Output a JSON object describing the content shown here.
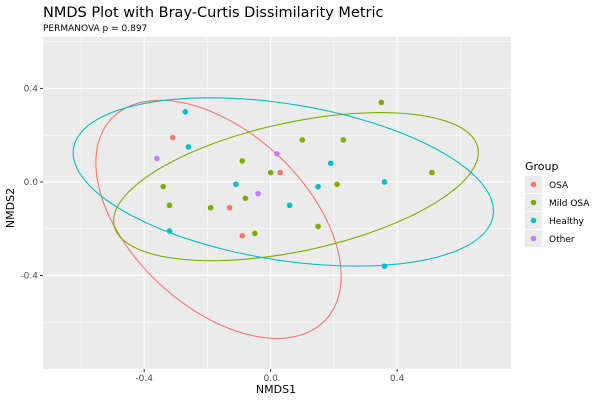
{
  "chart_data": {
    "type": "scatter",
    "title": "NMDS Plot with Bray-Curtis Dissimilarity Metric",
    "subtitle": "PERMANOVA p = 0.897",
    "xlabel": "NMDS1",
    "ylabel": "NMDS2",
    "xlim": [
      -0.72,
      0.76
    ],
    "ylim": [
      -0.8,
      0.62
    ],
    "xticks": [
      -0.4,
      0.0,
      0.4
    ],
    "yticks": [
      -0.4,
      0.0,
      0.4
    ],
    "xtick_labels": [
      "-0.4",
      "0.0",
      "0.4"
    ],
    "ytick_labels": [
      "-0.4",
      "0.0",
      "0.4"
    ],
    "grid": true,
    "legend": {
      "title": "Group",
      "position": "right"
    },
    "series": [
      {
        "name": "OSA",
        "color": "#F8766D",
        "points": [
          [
            -0.31,
            0.19
          ],
          [
            -0.13,
            -0.11
          ],
          [
            -0.09,
            -0.23
          ],
          [
            0.03,
            0.04
          ]
        ],
        "ellipse": {
          "cx": -0.165,
          "cy": -0.16,
          "rx": 0.56,
          "ry": 0.31,
          "angle_deg": -60
        }
      },
      {
        "name": "Mild OSA",
        "color": "#7CAE00",
        "points": [
          [
            -0.34,
            -0.02
          ],
          [
            -0.32,
            -0.1
          ],
          [
            -0.19,
            -0.11
          ],
          [
            -0.09,
            0.09
          ],
          [
            -0.08,
            -0.07
          ],
          [
            -0.05,
            -0.22
          ],
          [
            0.0,
            0.04
          ],
          [
            0.1,
            0.18
          ],
          [
            0.15,
            -0.19
          ],
          [
            0.21,
            -0.01
          ],
          [
            0.23,
            0.18
          ],
          [
            0.35,
            0.34
          ],
          [
            0.51,
            0.04
          ]
        ],
        "ellipse": {
          "cx": 0.08,
          "cy": -0.02,
          "rx": 0.6,
          "ry": 0.27,
          "angle_deg": 18
        }
      },
      {
        "name": "Healthy",
        "color": "#00BFC4",
        "points": [
          [
            -0.32,
            -0.21
          ],
          [
            -0.27,
            0.3
          ],
          [
            -0.26,
            0.15
          ],
          [
            -0.11,
            -0.01
          ],
          [
            0.06,
            -0.1
          ],
          [
            0.15,
            -0.02
          ],
          [
            0.19,
            0.08
          ],
          [
            0.36,
            0.0
          ],
          [
            0.36,
            -0.36
          ]
        ],
        "ellipse": {
          "cx": 0.04,
          "cy": 0.0,
          "rx": 0.68,
          "ry": 0.33,
          "angle_deg": -14
        }
      },
      {
        "name": "Other",
        "color": "#C77CFF",
        "points": [
          [
            -0.36,
            0.1
          ],
          [
            -0.04,
            -0.05
          ],
          [
            0.02,
            0.12
          ]
        ],
        "ellipse": null
      }
    ]
  }
}
